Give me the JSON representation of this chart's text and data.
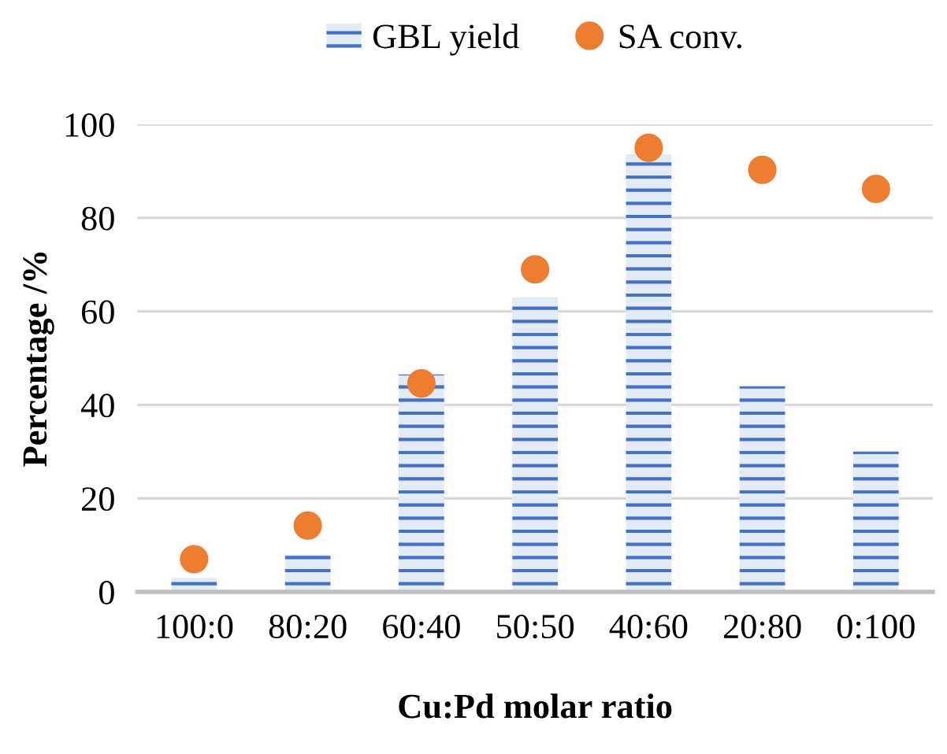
{
  "chart_data": {
    "type": "bar",
    "xlabel": "Cu:Pd molar ratio",
    "ylabel": "Percentage /%",
    "categories": [
      "100:0",
      "80:20",
      "60:40",
      "50:50",
      "40:60",
      "20:80",
      "0:100"
    ],
    "series": [
      {
        "name": "GBL yield",
        "color": "#4472c4",
        "values": [
          3,
          8,
          46.5,
          63,
          93.6,
          44,
          30
        ]
      },
      {
        "name": "SA conv.",
        "type": "scatter",
        "color": "#ed7d31",
        "values": [
          7,
          14.2,
          44.6,
          69,
          95,
          90.3,
          86.2
        ]
      }
    ],
    "ylim": [
      0,
      100
    ],
    "yticks": [
      0,
      20,
      40,
      60,
      80,
      100
    ],
    "grid": "y",
    "legend": "top",
    "marker": "circle"
  }
}
